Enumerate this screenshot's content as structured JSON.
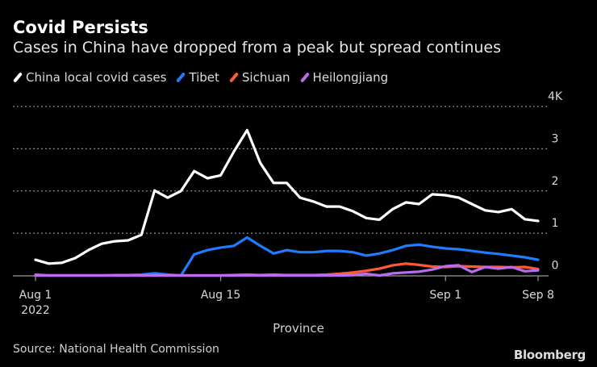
{
  "header": {
    "title": "Covid Persists",
    "subtitle": "Cases in China have dropped from a peak but spread continues"
  },
  "footer": {
    "source": "Source: National Health Commission",
    "brand": "Bloomberg"
  },
  "chart_data": {
    "type": "line",
    "title": "Covid Persists",
    "subtitle": "Cases in China have dropped from a peak but spread continues",
    "xlabel": "Province",
    "ylabel": "",
    "y_unit": "thousands of cases",
    "ylim": [
      0,
      4
    ],
    "y_ticks": [
      {
        "value": 0,
        "label": "0"
      },
      {
        "value": 1,
        "label": "1"
      },
      {
        "value": 2,
        "label": "2"
      },
      {
        "value": 3,
        "label": "3"
      },
      {
        "value": 4,
        "label": "4K"
      }
    ],
    "x_ticks": [
      {
        "index": 0,
        "label": "Aug 1",
        "sublabel": "2022"
      },
      {
        "index": 14,
        "label": "Aug 15",
        "sublabel": ""
      },
      {
        "index": 31,
        "label": "Sep 1",
        "sublabel": ""
      },
      {
        "index": 38,
        "label": "Sep 8",
        "sublabel": ""
      }
    ],
    "grid": true,
    "legend_position": "top-left",
    "x": [
      "Aug 1",
      "Aug 2",
      "Aug 3",
      "Aug 4",
      "Aug 5",
      "Aug 6",
      "Aug 7",
      "Aug 8",
      "Aug 9",
      "Aug 10",
      "Aug 11",
      "Aug 12",
      "Aug 13",
      "Aug 14",
      "Aug 15",
      "Aug 16",
      "Aug 17",
      "Aug 18",
      "Aug 19",
      "Aug 20",
      "Aug 21",
      "Aug 22",
      "Aug 23",
      "Aug 24",
      "Aug 25",
      "Aug 26",
      "Aug 27",
      "Aug 28",
      "Aug 29",
      "Aug 30",
      "Aug 31",
      "Sep 1",
      "Sep 2",
      "Sep 3",
      "Sep 4",
      "Sep 5",
      "Sep 6",
      "Sep 7",
      "Sep 8"
    ],
    "series": [
      {
        "name": "China local covid cases",
        "color": "#ffffff",
        "values": [
          0.37,
          0.28,
          0.3,
          0.41,
          0.6,
          0.75,
          0.81,
          0.83,
          0.96,
          2.01,
          1.84,
          2.0,
          2.47,
          2.3,
          2.37,
          2.93,
          3.44,
          2.66,
          2.19,
          2.19,
          1.84,
          1.75,
          1.63,
          1.63,
          1.52,
          1.36,
          1.32,
          1.57,
          1.73,
          1.69,
          1.92,
          1.9,
          1.84,
          1.69,
          1.54,
          1.5,
          1.57,
          1.33,
          1.29
        ]
      },
      {
        "name": "Tibet",
        "color": "#1f7bff",
        "values": [
          0.0,
          0.0,
          0.0,
          0.0,
          0.0,
          0.0,
          0.01,
          0.01,
          0.02,
          0.05,
          0.02,
          0.0,
          0.5,
          0.6,
          0.66,
          0.7,
          0.9,
          0.7,
          0.52,
          0.6,
          0.55,
          0.55,
          0.58,
          0.58,
          0.55,
          0.47,
          0.52,
          0.6,
          0.7,
          0.73,
          0.68,
          0.64,
          0.62,
          0.58,
          0.54,
          0.51,
          0.47,
          0.43,
          0.37
        ]
      },
      {
        "name": "Sichuan",
        "color": "#ff5a30",
        "values": [
          0.02,
          0.0,
          0.0,
          0.0,
          0.0,
          0.0,
          0.0,
          0.0,
          0.0,
          0.0,
          0.0,
          0.0,
          0.0,
          0.0,
          0.0,
          0.01,
          0.02,
          0.01,
          0.02,
          0.01,
          0.01,
          0.01,
          0.02,
          0.04,
          0.07,
          0.11,
          0.16,
          0.24,
          0.28,
          0.25,
          0.21,
          0.2,
          0.22,
          0.21,
          0.2,
          0.2,
          0.19,
          0.2,
          0.15
        ]
      },
      {
        "name": "Heilongjiang",
        "color": "#b96cf0",
        "values": [
          0.0,
          0.0,
          0.0,
          0.0,
          0.0,
          0.0,
          0.0,
          0.0,
          0.0,
          0.0,
          0.0,
          0.0,
          0.0,
          0.0,
          0.0,
          0.0,
          0.0,
          0.0,
          0.0,
          0.0,
          0.0,
          0.0,
          0.0,
          0.0,
          0.01,
          0.04,
          0.0,
          0.05,
          0.07,
          0.09,
          0.14,
          0.22,
          0.24,
          0.08,
          0.2,
          0.16,
          0.2,
          0.1,
          0.12
        ]
      }
    ]
  }
}
